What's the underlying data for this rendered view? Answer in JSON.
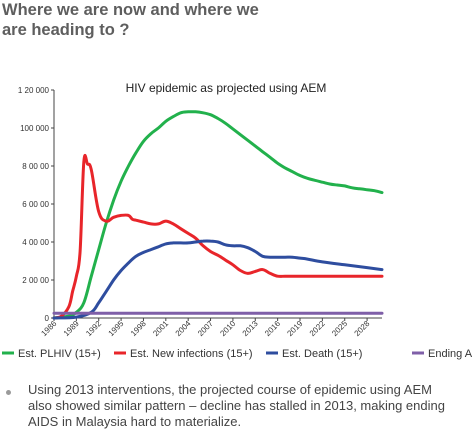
{
  "slide": {
    "heading_line1": "Where we are now and where we",
    "heading_line2": "are heading to ?",
    "bullet": "Using 2013 interventions, the projected course of epidemic using AEM also showed similar pattern – decline has stalled in 2013, making ending AIDS in Malaysia hard to materialize."
  },
  "chart_data": {
    "type": "line",
    "title": "HIV epidemic as projected using AEM",
    "xlabel": "",
    "ylabel": "",
    "xlim": [
      1986,
      2030
    ],
    "ylim": [
      0,
      120000
    ],
    "y_ticks": [
      0,
      20000,
      40000,
      60000,
      80000,
      100000,
      120000
    ],
    "y_tick_labels": [
      "0",
      "2 00 00",
      "4 00 00",
      "6 00 00",
      "8 00 00",
      "100 000",
      "1 20 000"
    ],
    "x_ticks": [
      1986,
      1989,
      1992,
      1995,
      1998,
      2001,
      2004,
      2007,
      2010,
      2013,
      2016,
      2019,
      2022,
      2025,
      2028
    ],
    "legend_position": "bottom",
    "grid": false,
    "series": [
      {
        "name": "Est. PLHIV (15+)",
        "color": "#22b14c",
        "x": [
          1986,
          1988,
          1989,
          1990,
          1991,
          1992,
          1993,
          1994,
          1995,
          1996,
          1997,
          1998,
          1999,
          2000,
          2001,
          2002,
          2003,
          2004,
          2005,
          2006,
          2007,
          2008,
          2009,
          2010,
          2011,
          2012,
          2013,
          2014,
          2015,
          2016,
          2017,
          2018,
          2019,
          2020,
          2021,
          2022,
          2023,
          2024,
          2025,
          2026,
          2027,
          2028,
          2029,
          2030
        ],
        "values": [
          0,
          1000,
          3000,
          8000,
          22000,
          36000,
          50000,
          62000,
          72000,
          80000,
          87000,
          93000,
          97000,
          100000,
          103500,
          106000,
          108000,
          108500,
          108500,
          108000,
          107000,
          105000,
          102500,
          99500,
          96500,
          93500,
          90500,
          87500,
          84500,
          81500,
          79000,
          77000,
          75000,
          73500,
          72500,
          71500,
          70500,
          70000,
          69500,
          68500,
          68000,
          67500,
          67000,
          66000
        ]
      },
      {
        "name": "Est. New infections (15+)",
        "color": "#e8252a",
        "x": [
          1986,
          1987,
          1988,
          1988.5,
          1989,
          1989.5,
          1990,
          1990.5,
          1991,
          1992,
          1993,
          1994,
          1995,
          1996,
          1996.5,
          1997,
          1998,
          1999,
          2000,
          2001,
          2002,
          2003,
          2004,
          2005,
          2006,
          2007,
          2008,
          2009,
          2010,
          2011,
          2012,
          2013,
          2014,
          2015,
          2016,
          2017,
          2018,
          2019,
          2020,
          2022,
          2025,
          2028,
          2030
        ],
        "values": [
          0,
          1000,
          6000,
          14000,
          22000,
          35000,
          82000,
          81000,
          78000,
          56000,
          51000,
          53000,
          54000,
          54000,
          52000,
          51500,
          50500,
          49500,
          49500,
          51000,
          49500,
          47000,
          44500,
          42000,
          38000,
          35000,
          33000,
          30500,
          28000,
          25000,
          23500,
          24500,
          25500,
          23500,
          22000,
          22000,
          22000,
          22000,
          22000,
          22000,
          22000,
          22000,
          22000
        ]
      },
      {
        "name": "Est. Death (15+)",
        "color": "#2e4d9f",
        "x": [
          1986,
          1989,
          1991,
          1992,
          1993,
          1994,
          1995,
          1996,
          1997,
          1998,
          1999,
          2000,
          2001,
          2002,
          2003,
          2004,
          2005,
          2006,
          2007,
          2008,
          2009,
          2010,
          2011,
          2012,
          2013,
          2014,
          2015,
          2016,
          2017,
          2018,
          2019,
          2020,
          2022,
          2025,
          2028,
          2030
        ],
        "values": [
          0,
          500,
          3000,
          8000,
          14000,
          20000,
          25000,
          29000,
          32500,
          34500,
          36000,
          37500,
          39000,
          39500,
          39500,
          39500,
          40000,
          40500,
          40500,
          40000,
          38500,
          38000,
          38000,
          37000,
          35000,
          32500,
          32000,
          32000,
          32000,
          32000,
          31500,
          31000,
          29500,
          28000,
          26500,
          25500
        ]
      },
      {
        "name": "Ending AIDS",
        "color": "#7f5fa8",
        "x": [
          1986,
          2030
        ],
        "values": [
          2500,
          2500
        ]
      }
    ]
  }
}
